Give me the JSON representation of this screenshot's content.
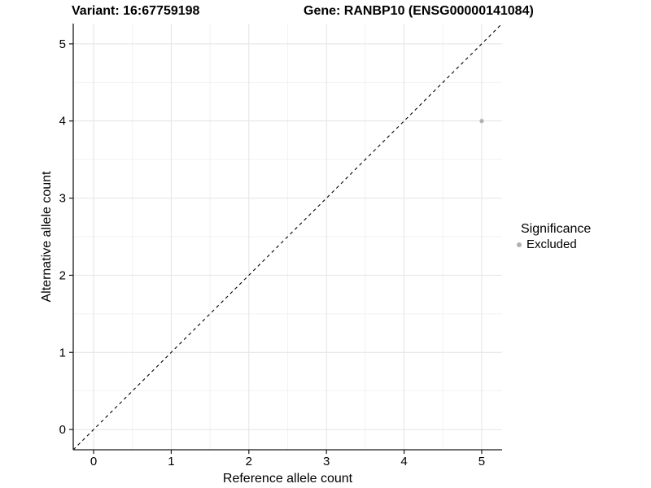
{
  "chart_data": {
    "type": "scatter",
    "titles": {
      "left": "Variant: 16:67759198",
      "right": "Gene: RANBP10 (ENSG00000141084)"
    },
    "xlabel": "Reference allele count",
    "ylabel": "Alternative allele count",
    "xlim": [
      -0.2625,
      5.2625
    ],
    "ylim": [
      -0.2625,
      5.2625
    ],
    "xticks": [
      0,
      1,
      2,
      3,
      4,
      5
    ],
    "yticks": [
      0,
      1,
      2,
      3,
      4,
      5
    ],
    "xminor": [
      0.5,
      1.5,
      2.5,
      3.5,
      4.5
    ],
    "yminor": [
      0.5,
      1.5,
      2.5,
      3.5,
      4.5
    ],
    "grid": "major+minor",
    "reference_line": {
      "kind": "identity",
      "slope": 1,
      "intercept": 0,
      "linetype": "dashed",
      "color": "#000000"
    },
    "series": [
      {
        "name": "Excluded",
        "color": "#b0b0b0",
        "point_radius": 2.6,
        "points": [
          {
            "x": 5,
            "y": 4
          }
        ]
      }
    ],
    "legend": {
      "title": "Significance",
      "position": "right",
      "entries": [
        {
          "label": "Excluded",
          "color": "#b0b0b0"
        }
      ]
    },
    "colors": {
      "background": "#ffffff",
      "grid_major": "#e4e4e4",
      "grid_minor": "#f2f2f2",
      "axis_line": "#1a1a1a",
      "tick_text": "#000000"
    }
  }
}
